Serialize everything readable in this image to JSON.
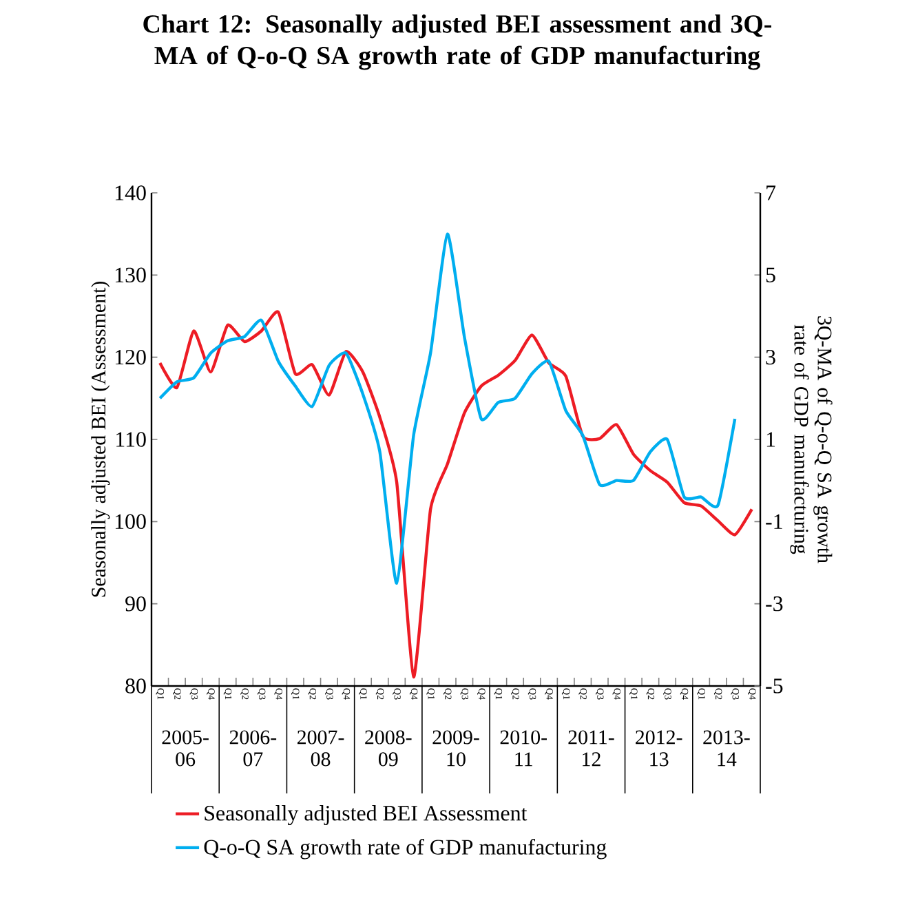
{
  "chart_data": {
    "type": "line",
    "title": "Chart 12: Seasonally adjusted  BEI assessment and 3Q-MA of Q-o-Q SA growth rate of GDP manufacturing",
    "ylabel": "Seasonally adjusted BEI (Assessment)",
    "y2label": "3Q-MA of Q-o-Q SA growth rate of GDP manufacturing",
    "categories": [
      "Q1",
      "Q2",
      "Q3",
      "Q4",
      "Q1",
      "Q2",
      "Q3",
      "Q4",
      "Q1",
      "Q2",
      "Q3",
      "Q4",
      "Q1",
      "Q2",
      "Q3",
      "Q4",
      "Q1",
      "Q2",
      "Q3",
      "Q4",
      "Q1",
      "Q2",
      "Q3",
      "Q4",
      "Q1",
      "Q2",
      "Q3",
      "Q4",
      "Q1",
      "Q2",
      "Q3",
      "Q4",
      "Q1",
      "Q2",
      "Q3",
      "Q4"
    ],
    "annotations": [
      "2005-06",
      "2006-07",
      "2007-08",
      "2008-09",
      "2009-10",
      "2010-11",
      "2011-12",
      "2012-13",
      "2013-14"
    ],
    "series": [
      {
        "name": "Seasonally adjusted BEI Assessment",
        "color": "#ed1c24",
        "values": [
          119.3,
          116.3,
          123.2,
          118.2,
          123.9,
          121.9,
          123.2,
          125.5,
          118,
          119.1,
          115.4,
          120.7,
          118.2,
          112.7,
          104.8,
          81.1,
          101.5,
          107,
          113.2,
          116.5,
          117.8,
          119.6,
          122.7,
          119.3,
          117.7,
          110.4,
          110.1,
          111.8,
          108.2,
          106.2,
          104.8,
          102.3,
          101.9,
          100.1,
          98.4,
          101.5
        ]
      },
      {
        "name": "Q-o-Q SA growth rate of GDP manufacturing",
        "color": "#00aeef",
        "axis": "y2",
        "values": [
          2.0,
          2.4,
          2.5,
          3.1,
          3.4,
          3.5,
          3.9,
          2.9,
          2.3,
          1.8,
          2.8,
          3.1,
          2.1,
          0.7,
          -2.5,
          1.1,
          3.1,
          6.0,
          3.5,
          1.5,
          1.9,
          2.0,
          2.6,
          2.9,
          1.7,
          1.1,
          -0.1,
          0.0,
          0.0,
          0.7,
          1.0,
          -0.4,
          -0.4,
          -0.6,
          1.5,
          null
        ]
      }
    ],
    "ylim": [
      80,
      140
    ],
    "yticks": [
      80,
      90,
      100,
      110,
      120,
      130,
      140
    ],
    "y2lim": [
      -5,
      7
    ],
    "y2ticks": [
      -5,
      -3,
      -1,
      1,
      3,
      5,
      7
    ],
    "legend": "bottom",
    "line_style": "solid",
    "grid": false
  }
}
